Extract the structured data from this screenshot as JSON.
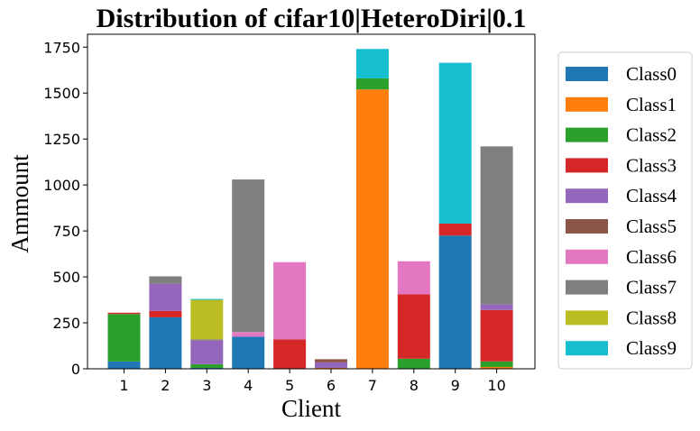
{
  "chart_data": {
    "type": "bar",
    "stacked": true,
    "title": "Distribution of cifar10|HeteroDiri|0.1",
    "xlabel": "Client",
    "ylabel": "Ammount",
    "categories": [
      "1",
      "2",
      "3",
      "4",
      "5",
      "6",
      "7",
      "8",
      "9",
      "10"
    ],
    "ylim": [
      0,
      1820
    ],
    "yticks": [
      0,
      250,
      500,
      750,
      1000,
      1250,
      1500,
      1750
    ],
    "legend_position": "right",
    "series": [
      {
        "name": "Class0",
        "color": "#1f77b4",
        "values": [
          40,
          280,
          5,
          175,
          0,
          0,
          0,
          0,
          725,
          0
        ]
      },
      {
        "name": "Class1",
        "color": "#ff7f0e",
        "values": [
          0,
          0,
          0,
          0,
          0,
          5,
          1520,
          0,
          0,
          10
        ]
      },
      {
        "name": "Class2",
        "color": "#2ca02c",
        "values": [
          258,
          0,
          20,
          0,
          0,
          0,
          60,
          55,
          0,
          30
        ]
      },
      {
        "name": "Class3",
        "color": "#d62728",
        "values": [
          7,
          35,
          0,
          0,
          160,
          0,
          0,
          350,
          65,
          280
        ]
      },
      {
        "name": "Class4",
        "color": "#9467bd",
        "values": [
          0,
          148,
          130,
          0,
          0,
          30,
          0,
          0,
          0,
          30
        ]
      },
      {
        "name": "Class5",
        "color": "#8c564b",
        "values": [
          0,
          0,
          0,
          0,
          0,
          17,
          0,
          0,
          0,
          0
        ]
      },
      {
        "name": "Class6",
        "color": "#e377c2",
        "values": [
          0,
          0,
          0,
          25,
          420,
          0,
          0,
          180,
          0,
          0
        ]
      },
      {
        "name": "Class7",
        "color": "#7f7f7f",
        "values": [
          0,
          40,
          5,
          830,
          0,
          0,
          0,
          0,
          0,
          860
        ]
      },
      {
        "name": "Class8",
        "color": "#bcbd22",
        "values": [
          0,
          0,
          215,
          0,
          0,
          0,
          0,
          0,
          0,
          0
        ]
      },
      {
        "name": "Class9",
        "color": "#17becf",
        "values": [
          0,
          0,
          5,
          0,
          0,
          0,
          160,
          0,
          875,
          0
        ]
      }
    ]
  }
}
